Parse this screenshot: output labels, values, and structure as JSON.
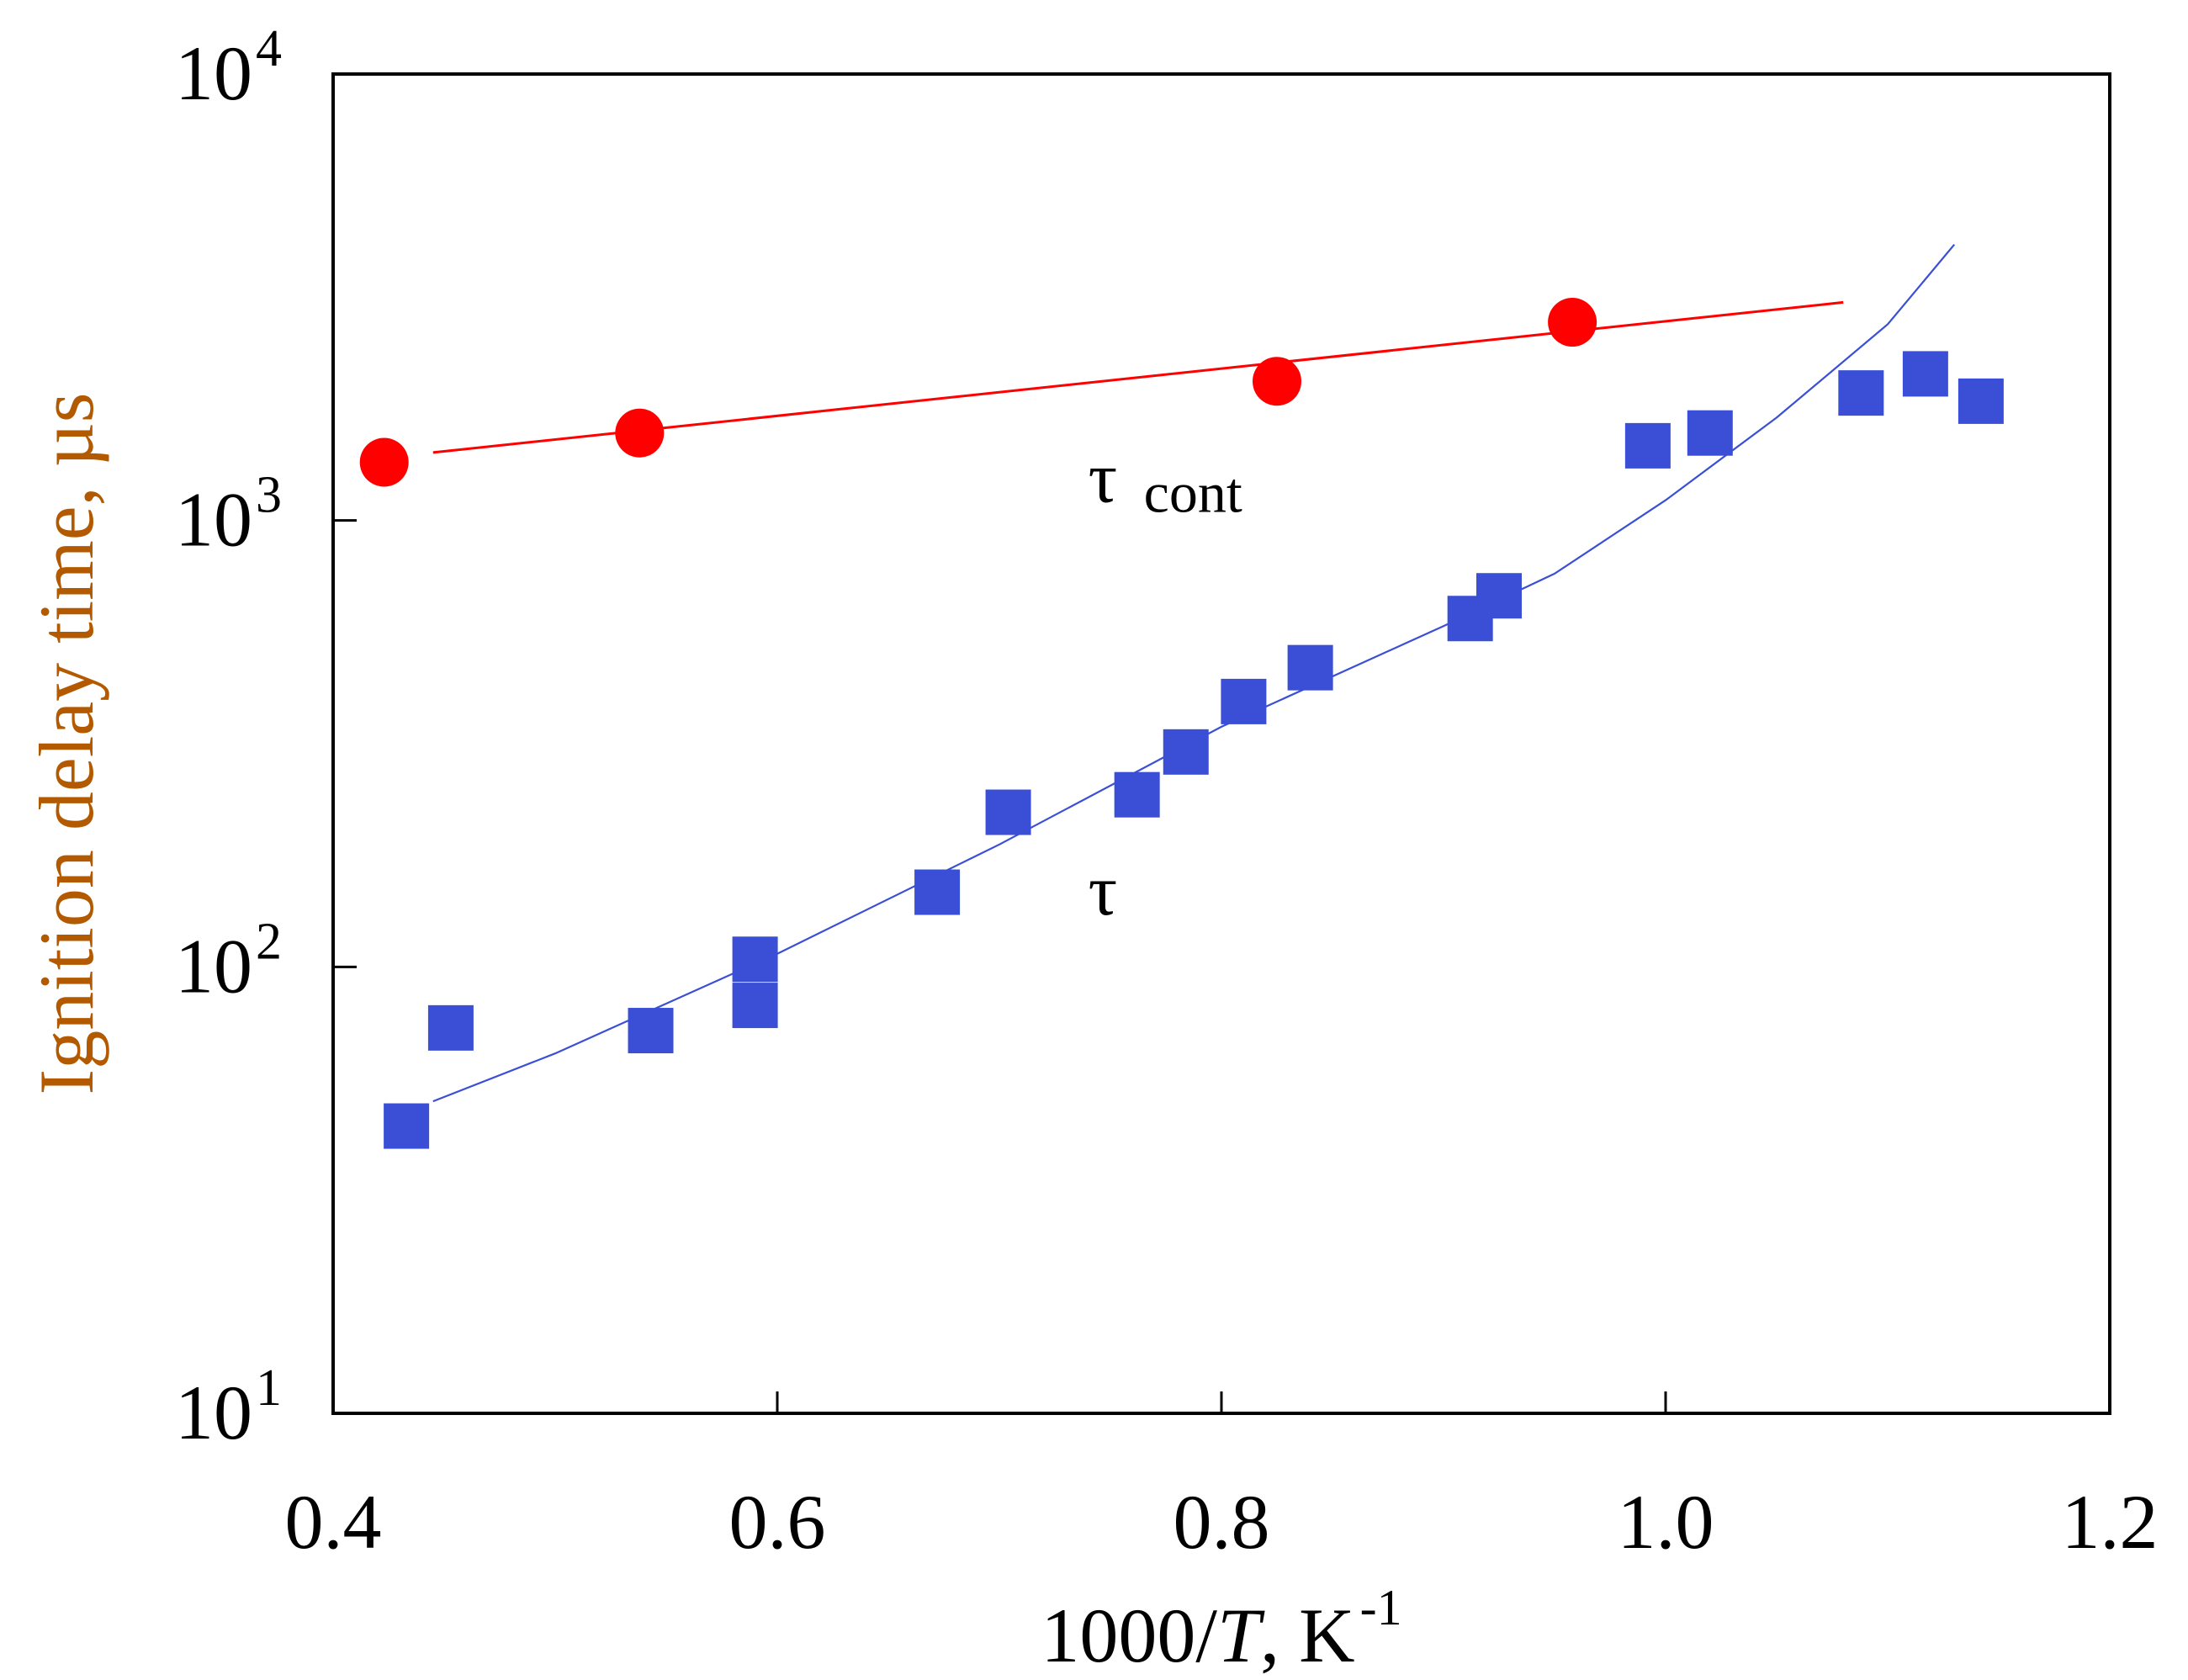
{
  "chart_data": {
    "type": "scatter",
    "title": "",
    "xlabel": {
      "prefix": "1000/",
      "italic": "T",
      "suffix": ", K",
      "superscript": "-1"
    },
    "ylabel": "Ignition delay time, µs",
    "xlim": [
      0.4,
      1.2
    ],
    "ylim": [
      10,
      10000
    ],
    "yscale": "log",
    "x_ticks": [
      "0.4",
      "0.6",
      "0.8",
      "1.0",
      "1.2"
    ],
    "x_tick_values": [
      0.4,
      0.6,
      0.8,
      1.0,
      1.2
    ],
    "y_ticks": [
      {
        "base": "10",
        "exp": "1",
        "value": 10
      },
      {
        "base": "10",
        "exp": "2",
        "value": 100
      },
      {
        "base": "10",
        "exp": "3",
        "value": 1000
      },
      {
        "base": "10",
        "exp": "4",
        "value": 10000
      }
    ],
    "series": [
      {
        "name": "τ cont",
        "label_main": "τ",
        "label_sub": "cont",
        "label_anchor": [
          0.74,
          1100
        ],
        "marker": "circle",
        "color": "#ff0000",
        "points": [
          {
            "x": 0.423,
            "y": 1350
          },
          {
            "x": 0.538,
            "y": 1570
          },
          {
            "x": 0.825,
            "y": 2050
          },
          {
            "x": 0.958,
            "y": 2780
          }
        ],
        "fit": [
          [
            0.445,
            1420
          ],
          [
            1.08,
            3080
          ]
        ]
      },
      {
        "name": "τ",
        "label_main": "τ",
        "label_anchor": [
          0.74,
          131
        ],
        "marker": "square",
        "color": "#3a4fd6",
        "points": [
          {
            "x": 0.433,
            "y": 44
          },
          {
            "x": 0.453,
            "y": 73
          },
          {
            "x": 0.543,
            "y": 72
          },
          {
            "x": 0.59,
            "y": 104
          },
          {
            "x": 0.59,
            "y": 82
          },
          {
            "x": 0.672,
            "y": 147
          },
          {
            "x": 0.704,
            "y": 222
          },
          {
            "x": 0.762,
            "y": 243
          },
          {
            "x": 0.784,
            "y": 303
          },
          {
            "x": 0.81,
            "y": 393
          },
          {
            "x": 0.84,
            "y": 468
          },
          {
            "x": 0.912,
            "y": 603
          },
          {
            "x": 0.925,
            "y": 678
          },
          {
            "x": 0.992,
            "y": 1470
          },
          {
            "x": 1.02,
            "y": 1570
          },
          {
            "x": 1.088,
            "y": 1930
          },
          {
            "x": 1.117,
            "y": 2130
          },
          {
            "x": 1.142,
            "y": 1850
          }
        ],
        "fit": [
          [
            0.445,
            50
          ],
          [
            0.5,
            64
          ],
          [
            0.6,
            107
          ],
          [
            0.7,
            188
          ],
          [
            0.8,
            345
          ],
          [
            0.9,
            580
          ],
          [
            0.95,
            760
          ],
          [
            1.0,
            1110
          ],
          [
            1.05,
            1700
          ],
          [
            1.1,
            2750
          ],
          [
            1.13,
            4150
          ]
        ]
      }
    ],
    "colors": {
      "axis": "#000000",
      "ylabel": "#b35a00",
      "red": "#ff0000",
      "blue": "#3a4fd6"
    }
  }
}
